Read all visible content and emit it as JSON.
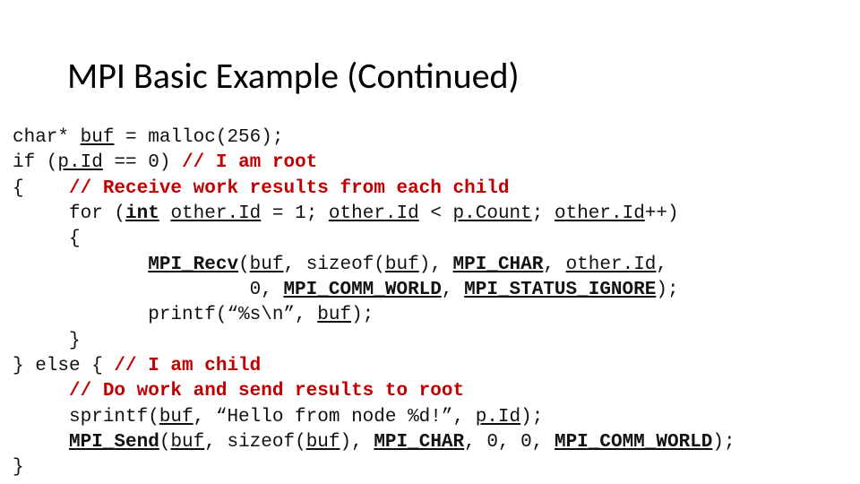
{
  "title": "MPI Basic Example (Continued)",
  "code": {
    "l1a": "char* ",
    "l1b": "buf",
    "l1c": " = malloc(256);",
    "l2a": "if (",
    "l2b": "p.Id",
    "l2c": " == 0) ",
    "l2d": "// I am root",
    "l3a": "{    ",
    "l3b": "// Receive work results from each child",
    "l4a": "     for (",
    "l4b": "int",
    "l4c": " ",
    "l4d": "other.Id",
    "l4e": " = 1; ",
    "l4f": "other.Id",
    "l4g": " < ",
    "l4h": "p.Count",
    "l4i": "; ",
    "l4j": "other.Id",
    "l4k": "++)",
    "l5": "     {",
    "l6a": "            ",
    "l6b": "MPI_Recv",
    "l6c": "(",
    "l6d": "buf",
    "l6e": ", sizeof(",
    "l6f": "buf",
    "l6g": "), ",
    "l6h": "MPI_CHAR",
    "l6i": ", ",
    "l6j": "other.Id",
    "l6k": ",",
    "l7a": "                     0, ",
    "l7b": "MPI_COMM_WORLD",
    "l7c": ", ",
    "l7d": "MPI_STATUS_IGNORE",
    "l7e": ");",
    "l8a": "            printf(“%s\\n”, ",
    "l8b": "buf",
    "l8c": ");",
    "l9": "     }",
    "l10a": "} else { ",
    "l10b": "// I am child",
    "l11a": "     ",
    "l11b": "// Do work and send results to root",
    "l12a": "     sprintf(",
    "l12b": "buf",
    "l12c": ", “Hello from node %d!”, ",
    "l12d": "p.Id",
    "l12e": ");",
    "l13a": "     ",
    "l13b": "MPI_Send",
    "l13c": "(",
    "l13d": "buf",
    "l13e": ", sizeof(",
    "l13f": "buf",
    "l13g": "), ",
    "l13h": "MPI_CHAR",
    "l13i": ", 0, 0, ",
    "l13j": "MPI_COMM_WORLD",
    "l13k": ");",
    "l14": "}"
  }
}
